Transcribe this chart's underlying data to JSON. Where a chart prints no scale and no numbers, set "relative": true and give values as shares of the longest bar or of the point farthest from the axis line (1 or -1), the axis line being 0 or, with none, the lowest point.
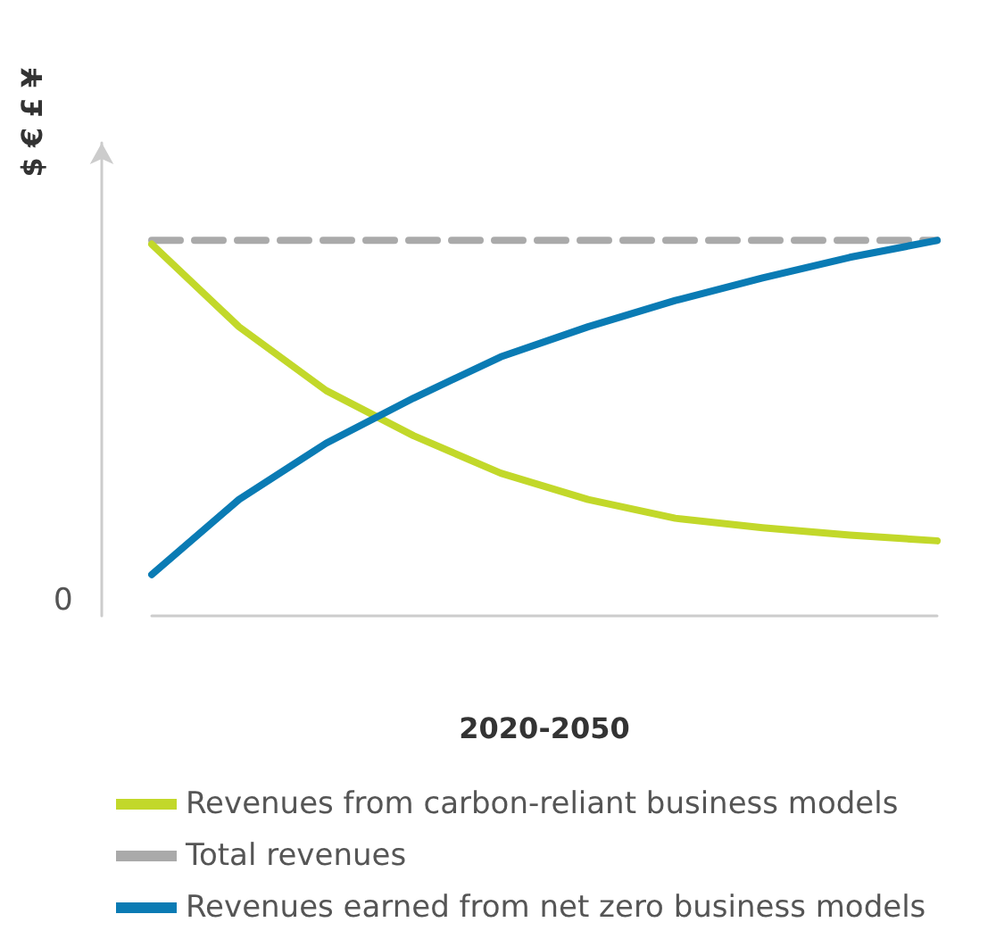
{
  "chart_data": {
    "type": "line",
    "relative": true,
    "xlabel": "2020-2050",
    "ylabel": "$ € £ ¥",
    "annotations": [
      "0"
    ],
    "categories": [
      null,
      null,
      null,
      null,
      null,
      null,
      null,
      null,
      null,
      null
    ],
    "series": [
      {
        "name": "Revenues from carbon-reliant business models",
        "color": "#c2d82a",
        "values": [
          0.99,
          0.77,
          0.6,
          0.48,
          0.38,
          0.31,
          0.26,
          0.235,
          0.215,
          0.2
        ]
      },
      {
        "name": "Total revenues",
        "color": "#aaaaaa",
        "line_style": "dashed",
        "values": [
          1,
          1,
          1,
          1,
          1,
          1,
          1,
          1,
          1,
          1
        ]
      },
      {
        "name": "Revenues earned from net zero business models",
        "color": "#0a7bb4",
        "values": [
          0.11,
          0.31,
          0.46,
          0.58,
          0.69,
          0.77,
          0.84,
          0.9,
          0.955,
          1
        ]
      }
    ],
    "legend": "bottom",
    "marker": "none",
    "grid": false
  }
}
